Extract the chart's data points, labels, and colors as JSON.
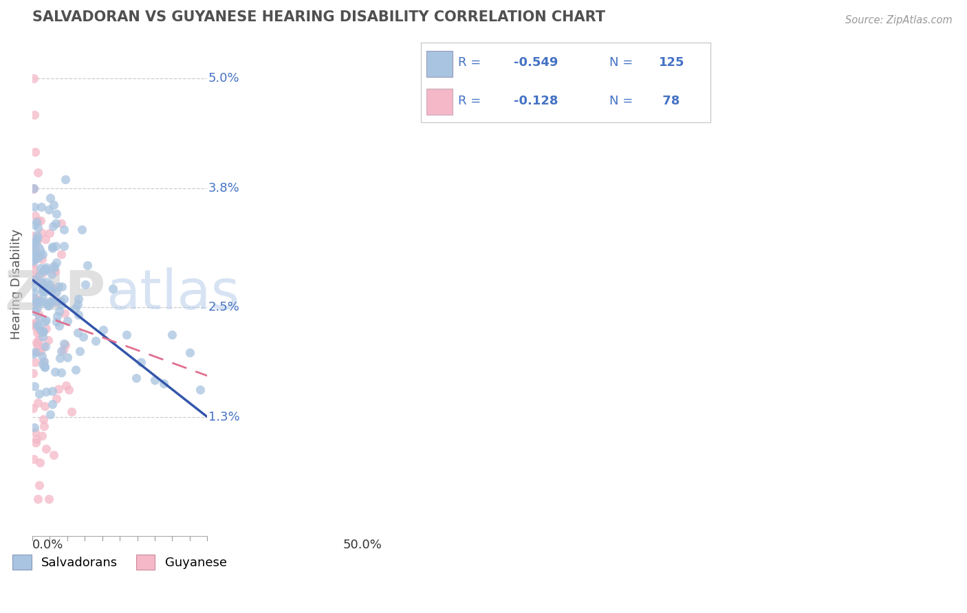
{
  "title": "SALVADORAN VS GUYANESE HEARING DISABILITY CORRELATION CHART",
  "source": "Source: ZipAtlas.com",
  "ylabel": "Hearing Disability",
  "y_ticks_right": [
    0.013,
    0.025,
    0.038,
    0.05
  ],
  "y_ticks_right_labels": [
    "1.3%",
    "2.5%",
    "3.8%",
    "5.0%"
  ],
  "xlim": [
    0.0,
    0.5
  ],
  "ylim": [
    0.0,
    0.055
  ],
  "salvadoran_color": "#a8c4e0",
  "guyanese_color": "#f4b8c8",
  "line_color_salv": "#3355aa",
  "line_color_guy": "#e07090",
  "background_color": "#ffffff",
  "text_color": "#4472c4",
  "title_color": "#505050",
  "salv_line_start_y": 0.028,
  "salv_line_end_y": 0.013,
  "guy_line_start_y": 0.0245,
  "guy_line_end_y": 0.0175,
  "legend_r1": "-0.549",
  "legend_n1": "125",
  "legend_r2": "-0.128",
  "legend_n2": " 78"
}
